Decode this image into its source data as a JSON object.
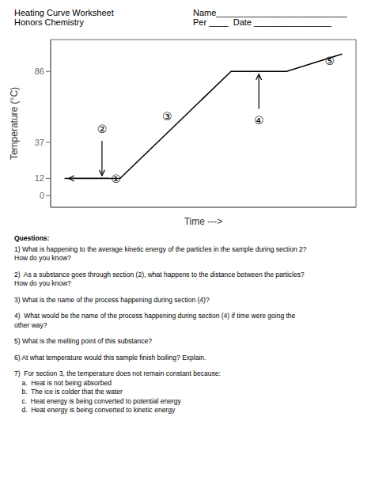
{
  "chart_data": {
    "type": "line",
    "title": "Heating Curve Worksheet",
    "subtitle": "Honors Chemistry",
    "header_lines": [
      "Name___________________________",
      "Per ____  Date ________________"
    ],
    "xlabel": "Time --->",
    "ylabel": "Temperature (°C)",
    "x": [
      0.5,
      2.5,
      6.5,
      8.5,
      10.5
    ],
    "values": [
      12,
      12,
      86,
      86,
      98
    ],
    "color": "#000000",
    "xlim": [
      0,
      11
    ],
    "xticks": [],
    "ylim": [
      -8,
      108
    ],
    "yticks": [
      0,
      12,
      37,
      86
    ],
    "tick_labels": "y",
    "grid": false,
    "annotations": [
      {
        "text": "①",
        "x": 2.35,
        "y": 11.5
      },
      {
        "text": "②",
        "x": 1.85,
        "y": 46
      },
      {
        "text": "③",
        "x": 4.2,
        "y": 55
      },
      {
        "text": "④",
        "x": 7.5,
        "y": 52
      },
      {
        "text": "⑤",
        "x": 10.05,
        "y": 93
      }
    ],
    "arrows": [
      {
        "from": [
          2.1,
          12
        ],
        "to": [
          0.65,
          12
        ]
      },
      {
        "from": [
          1.85,
          38
        ],
        "to": [
          1.85,
          14
        ]
      },
      {
        "from": [
          7.5,
          60
        ],
        "to": [
          7.5,
          84
        ]
      }
    ],
    "questions_heading": "Questions:",
    "questions": [
      [
        "1) What is happening to the average kinetic energy of the particles in the sample during section 2?",
        "How do you know?"
      ],
      [
        "2)  As a substance goes through section (2), what happens to the distance between the particles?",
        "How do you know?"
      ],
      [
        "3) What is the name of the process happening during section (4)?"
      ],
      [
        "4)  What would be the name of the process happening during section (4) if time were going the",
        "other way?"
      ],
      [
        "5) What is the melting point of this substance?"
      ],
      [
        "6) At what temperature would this sample finish boiling? Explain."
      ],
      [
        "7)  For section 3, the temperature does not remain constant because:",
        "    a.  Heat is not being absorbed",
        "    b.  The ice is colder that the water",
        "    c.  Heat energy is being converted to potential energy",
        "    d.  Heat energy is being converted to kinetic energy"
      ]
    ]
  }
}
